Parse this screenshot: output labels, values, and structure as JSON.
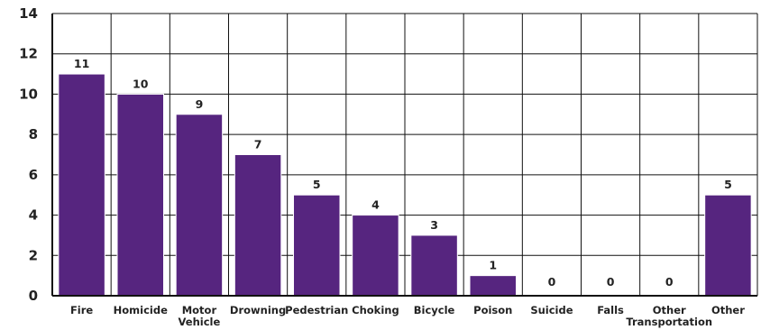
{
  "chart_data": {
    "type": "bar",
    "categories": [
      [
        "Fire"
      ],
      [
        "Homicide"
      ],
      [
        "Motor",
        "Vehicle"
      ],
      [
        "Drowning"
      ],
      [
        "Pedestrian"
      ],
      [
        "Choking"
      ],
      [
        "Bicycle"
      ],
      [
        "Poison"
      ],
      [
        "Suicide"
      ],
      [
        "Falls"
      ],
      [
        "Other",
        "Transportation"
      ],
      [
        "Other"
      ]
    ],
    "values": [
      11,
      10,
      9,
      7,
      5,
      4,
      3,
      1,
      0,
      0,
      0,
      5
    ],
    "data_labels": [
      "11",
      "10",
      "9",
      "7",
      "5",
      "4",
      "3",
      "1",
      "0",
      "0",
      "0",
      "5"
    ],
    "y_ticks": [
      0,
      2,
      4,
      6,
      8,
      10,
      12,
      14
    ],
    "ylim": [
      0,
      14
    ],
    "grid": true,
    "legend": "none",
    "bar_color": "#56257f"
  }
}
